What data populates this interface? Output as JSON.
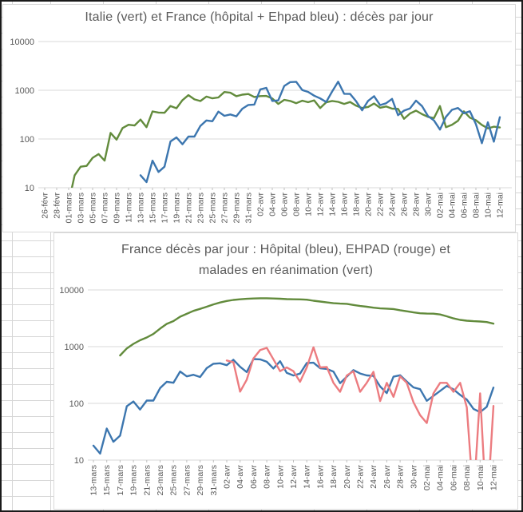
{
  "colors": {
    "italy_green": "#628b3c",
    "france_blue": "#3c76af",
    "ehpad_red": "#ec7c80",
    "title_gray": "#595959",
    "gridline_gray": "#d9d9d9",
    "tick_gray": "#bfbfbf",
    "sheet_grid": "#d6d6d6"
  },
  "chart_data": [
    {
      "type": "line",
      "title": "Italie (vert) et France (hôpital + Ehpad bleu) : décès par jour",
      "y_scale": "log",
      "ylim": [
        10,
        10000
      ],
      "y_ticks": [
        10,
        100,
        1000,
        10000
      ],
      "x_tick_every": 2,
      "grid": "horizontal",
      "legend_position": "none",
      "categories": [
        "26-févr",
        "27-févr",
        "28-févr",
        "29-févr",
        "01-mars",
        "02-mars",
        "03-mars",
        "04-mars",
        "05-mars",
        "06-mars",
        "07-mars",
        "08-mars",
        "09-mars",
        "10-mars",
        "11-mars",
        "12-mars",
        "13-mars",
        "14-mars",
        "15-mars",
        "16-mars",
        "17-mars",
        "18-mars",
        "19-mars",
        "20-mars",
        "21-mars",
        "22-mars",
        "23-mars",
        "24-mars",
        "25-mars",
        "26-mars",
        "27-mars",
        "28-mars",
        "29-mars",
        "30-mars",
        "31-mars",
        "01-avr",
        "02-avr",
        "03-avr",
        "04-avr",
        "05-avr",
        "06-avr",
        "07-avr",
        "08-avr",
        "09-avr",
        "10-avr",
        "11-avr",
        "12-avr",
        "13-avr",
        "14-avr",
        "15-avr",
        "16-avr",
        "17-avr",
        "18-avr",
        "19-avr",
        "20-avr",
        "21-avr",
        "22-avr",
        "23-avr",
        "24-avr",
        "25-avr",
        "26-avr",
        "27-avr",
        "28-avr",
        "29-avr",
        "30-avr",
        "01-mai",
        "02-mai",
        "03-mai",
        "04-mai",
        "05-mai",
        "06-mai",
        "07-mai",
        "08-mai",
        "09-mai",
        "10-mai",
        "11-mai",
        "12-mai"
      ],
      "series": [
        {
          "name": "Italie",
          "color": "#628b3c",
          "values": [
            5,
            4,
            8,
            4,
            5,
            18,
            27,
            28,
            41,
            49,
            36,
            133,
            97,
            168,
            196,
            189,
            250,
            175,
            368,
            349,
            345,
            475,
            427,
            627,
            793,
            651,
            601,
            743,
            683,
            712,
            919,
            889,
            756,
            812,
            837,
            727,
            760,
            766,
            681,
            525,
            636,
            604,
            542,
            610,
            570,
            619,
            431,
            566,
            602,
            578,
            525,
            575,
            482,
            433,
            454,
            534,
            437,
            464,
            420,
            415,
            260,
            333,
            382,
            323,
            285,
            269,
            474,
            174,
            195,
            236,
            369,
            274,
            243,
            194,
            165,
            179,
            172
          ]
        },
        {
          "name": "France (hôpital + Ehpad)",
          "color": "#3c76af",
          "values": [
            null,
            null,
            null,
            null,
            null,
            null,
            null,
            null,
            null,
            null,
            null,
            null,
            null,
            null,
            null,
            null,
            18,
            13,
            36,
            21,
            27,
            89,
            108,
            78,
            112,
            112,
            186,
            240,
            231,
            365,
            299,
            319,
            292,
            418,
            499,
            509,
            1041,
            1120,
            602,
            618,
            1225,
            1467,
            1492,
            1012,
            924,
            775,
            680,
            575,
            944,
            1495,
            847,
            842,
            594,
            387,
            605,
            757,
            496,
            541,
            665,
            308,
            382,
            425,
            613,
            473,
            296,
            240,
            156,
            285,
            396,
            433,
            337,
            371,
            202,
            82,
            220,
            88,
            280
          ]
        }
      ]
    },
    {
      "type": "line",
      "title_lines": [
        "France décès par jour : Hôpital  (bleu),  EHPAD (rouge) et",
        "malades en réanimation (vert)"
      ],
      "y_scale": "log",
      "ylim": [
        10,
        10000
      ],
      "y_ticks": [
        10,
        100,
        1000,
        10000
      ],
      "x_tick_every": 2,
      "grid": "horizontal",
      "legend_position": "none",
      "categories": [
        "13-mars",
        "14-mars",
        "15-mars",
        "16-mars",
        "17-mars",
        "18-mars",
        "19-mars",
        "20-mars",
        "21-mars",
        "22-mars",
        "23-mars",
        "24-mars",
        "25-mars",
        "26-mars",
        "27-mars",
        "28-mars",
        "29-mars",
        "30-mars",
        "31-mars",
        "01-avr",
        "02-avr",
        "03-avr",
        "04-avr",
        "05-avr",
        "06-avr",
        "07-avr",
        "08-avr",
        "09-avr",
        "10-avr",
        "11-avr",
        "12-avr",
        "13-avr",
        "14-avr",
        "15-avr",
        "16-avr",
        "17-avr",
        "18-avr",
        "19-avr",
        "20-avr",
        "21-avr",
        "22-avr",
        "23-avr",
        "24-avr",
        "25-avr",
        "26-avr",
        "27-avr",
        "28-avr",
        "29-avr",
        "30-avr",
        "01-mai",
        "02-mai",
        "03-mai",
        "04-mai",
        "05-mai",
        "06-mai",
        "07-mai",
        "08-mai",
        "09-mai",
        "10-mai",
        "11-mai",
        "12-mai"
      ],
      "series": [
        {
          "name": "Hôpital",
          "color": "#3c76af",
          "values": [
            18,
            13,
            36,
            21,
            27,
            89,
            108,
            78,
            112,
            112,
            186,
            240,
            231,
            365,
            299,
            319,
            292,
            418,
            499,
            509,
            471,
            588,
            441,
            357,
            605,
            597,
            541,
            412,
            554,
            345,
            310,
            335,
            514,
            521,
            417,
            405,
            364,
            227,
            295,
            387,
            336,
            311,
            305,
            198,
            152,
            295,
            313,
            243,
            191,
            178,
            111,
            135,
            166,
            203,
            177,
            141,
            117,
            80,
            70,
            87,
            190
          ]
        },
        {
          "name": "EHPAD",
          "color": "#ec7c80",
          "values": [
            null,
            null,
            null,
            null,
            null,
            null,
            null,
            null,
            null,
            null,
            null,
            null,
            null,
            null,
            null,
            null,
            null,
            null,
            null,
            null,
            570,
            532,
            161,
            261,
            620,
            870,
            951,
            600,
            370,
            430,
            370,
            240,
            430,
            974,
            430,
            437,
            230,
            160,
            310,
            370,
            160,
            230,
            360,
            110,
            230,
            130,
            300,
            230,
            105,
            62,
            45,
            150,
            230,
            230,
            160,
            230,
            85,
            2,
            150,
            1,
            90
          ]
        },
        {
          "name": "malades en réanimation",
          "color": "#628b3c",
          "values": [
            null,
            null,
            null,
            null,
            699,
            931,
            1122,
            1297,
            1453,
            1674,
            2080,
            2516,
            2827,
            3375,
            3787,
            4273,
            4632,
            5056,
            5565,
            6017,
            6399,
            6662,
            6838,
            6978,
            7072,
            7131,
            7148,
            7066,
            7004,
            6883,
            6845,
            6821,
            6730,
            6457,
            6248,
            6027,
            5833,
            5744,
            5683,
            5433,
            5218,
            5053,
            4870,
            4725,
            4682,
            4608,
            4387,
            4207,
            4019,
            3878,
            3827,
            3819,
            3696,
            3430,
            3147,
            2961,
            2868,
            2812,
            2776,
            2712,
            2542
          ]
        }
      ]
    }
  ]
}
